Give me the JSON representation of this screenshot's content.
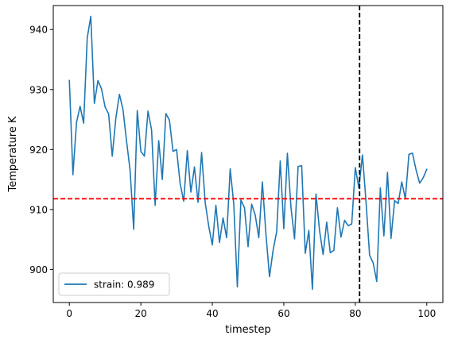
{
  "chart_data": {
    "type": "line",
    "title": "",
    "xlabel": "timestep",
    "ylabel": "Temperature K",
    "xlim": [
      -4.5,
      104.5
    ],
    "ylim": [
      894.5,
      944
    ],
    "xticks": [
      0,
      20,
      40,
      60,
      80,
      100
    ],
    "yticks": [
      900,
      910,
      920,
      930,
      940
    ],
    "grid": false,
    "legend_placement": "lower-left",
    "series": [
      {
        "name": "strain: 0.989",
        "color": "#1f77b4",
        "x": [
          0,
          1,
          2,
          3,
          4,
          5,
          6,
          7,
          8,
          9,
          10,
          11,
          12,
          13,
          14,
          15,
          16,
          17,
          18,
          19,
          20,
          21,
          22,
          23,
          24,
          25,
          26,
          27,
          28,
          29,
          30,
          31,
          32,
          33,
          34,
          35,
          36,
          37,
          38,
          39,
          40,
          41,
          42,
          43,
          44,
          45,
          46,
          47,
          48,
          49,
          50,
          51,
          52,
          53,
          54,
          55,
          56,
          57,
          58,
          59,
          60,
          61,
          62,
          63,
          64,
          65,
          66,
          67,
          68,
          69,
          70,
          71,
          72,
          73,
          74,
          75,
          76,
          77,
          78,
          79,
          80,
          81,
          82,
          83,
          84,
          85,
          86,
          87,
          88,
          89,
          90,
          91,
          92,
          93,
          94,
          95,
          96,
          97,
          98,
          99,
          100
        ],
        "y": [
          931.5,
          915.8,
          924.5,
          927.2,
          924.4,
          938.6,
          942.2,
          927.7,
          931.5,
          930.1,
          927.1,
          925.9,
          918.9,
          925.2,
          929.2,
          926.7,
          921.4,
          916.5,
          906.7,
          926.5,
          919.7,
          918.9,
          926.4,
          923.3,
          910.7,
          921.5,
          915.0,
          926.0,
          924.9,
          919.7,
          920.0,
          914.3,
          911.4,
          919.8,
          912.9,
          917.1,
          911.2,
          919.5,
          911.2,
          907.2,
          904.1,
          910.7,
          904.5,
          908.6,
          905.3,
          916.8,
          910.9,
          897.1,
          911.6,
          910.3,
          903.8,
          910.9,
          909.1,
          905.3,
          914.6,
          905.9,
          898.8,
          903.2,
          906.3,
          918.1,
          906.8,
          919.4,
          910.4,
          905.1,
          917.2,
          917.3,
          902.7,
          906.5,
          896.7,
          912.6,
          906.5,
          902.5,
          907.9,
          902.8,
          903.2,
          910.3,
          905.4,
          908.2,
          907.3,
          907.6,
          917.0,
          913.6,
          919.1,
          911.3,
          902.4,
          901.1,
          898.0,
          913.6,
          905.6,
          916.2,
          905.2,
          911.5,
          911.0,
          914.6,
          911.8,
          919.2,
          919.4,
          916.6,
          914.4,
          915.3,
          916.7
        ]
      }
    ],
    "reference_lines": [
      {
        "orientation": "horizontal",
        "value": 911.8,
        "color": "#ff0000",
        "style": "dashed"
      },
      {
        "orientation": "vertical",
        "value": 81.2,
        "color": "#000000",
        "style": "dashed"
      }
    ]
  }
}
